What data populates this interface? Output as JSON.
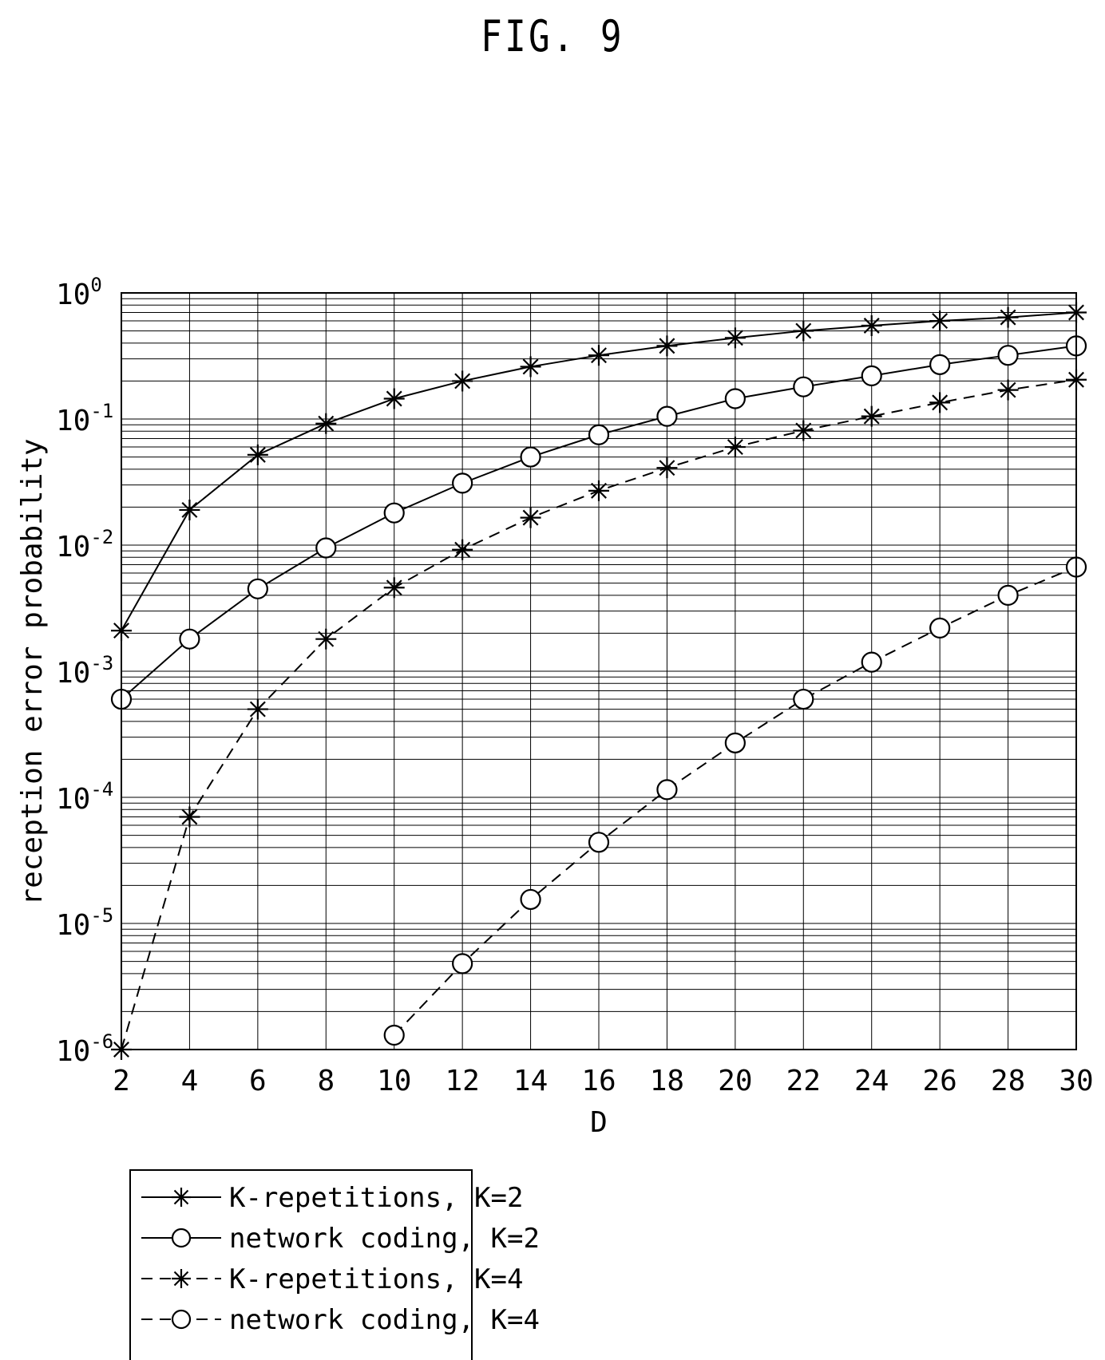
{
  "chart_data": {
    "type": "line",
    "title": "FIG. 9",
    "xlabel": "D",
    "ylabel": "reception error probability",
    "xlim": [
      2,
      30
    ],
    "ylim": [
      1e-06,
      1
    ],
    "y_scale": "log",
    "grid": true,
    "legend_position": "below-left",
    "x_ticks": [
      "2",
      "4",
      "6",
      "8",
      "10",
      "12",
      "14",
      "16",
      "18",
      "20",
      "22",
      "24",
      "26",
      "28",
      "30"
    ],
    "y_ticks": [
      {
        "base": "10",
        "exp": "0",
        "value": 1
      },
      {
        "base": "10",
        "exp": "-1",
        "value": 0.1
      },
      {
        "base": "10",
        "exp": "-2",
        "value": 0.01
      },
      {
        "base": "10",
        "exp": "-3",
        "value": 0.001
      },
      {
        "base": "10",
        "exp": "-4",
        "value": 0.0001
      },
      {
        "base": "10",
        "exp": "-5",
        "value": 1e-05
      },
      {
        "base": "10",
        "exp": "-6",
        "value": 1e-06
      }
    ],
    "series": [
      {
        "name": "K-repetitions, K=2",
        "marker": "asterisk",
        "line": "solid",
        "x": [
          2,
          4,
          6,
          8,
          10,
          12,
          14,
          16,
          18,
          20,
          22,
          24,
          26,
          28,
          30
        ],
        "values": [
          0.0021,
          0.019,
          0.052,
          0.092,
          0.145,
          0.2,
          0.26,
          0.32,
          0.38,
          0.44,
          0.5,
          0.55,
          0.6,
          0.64,
          0.7
        ]
      },
      {
        "name": "network coding, K=2",
        "marker": "circle",
        "line": "solid",
        "x": [
          2,
          4,
          6,
          8,
          10,
          12,
          14,
          16,
          18,
          20,
          22,
          24,
          26,
          28,
          30
        ],
        "values": [
          0.0006,
          0.0018,
          0.0045,
          0.0095,
          0.018,
          0.031,
          0.05,
          0.075,
          0.105,
          0.145,
          0.18,
          0.22,
          0.27,
          0.32,
          0.38
        ]
      },
      {
        "name": "K-repetitions, K=4",
        "marker": "asterisk",
        "line": "dashed",
        "x": [
          2,
          4,
          6,
          8,
          10,
          12,
          14,
          16,
          18,
          20,
          22,
          24,
          26,
          28,
          30
        ],
        "values": [
          1e-06,
          7e-05,
          0.0005,
          0.0018,
          0.0046,
          0.0092,
          0.0165,
          0.027,
          0.041,
          0.06,
          0.081,
          0.105,
          0.135,
          0.17,
          0.205
        ]
      },
      {
        "name": "network coding, K=4",
        "marker": "circle",
        "line": "dashed",
        "x": [
          10,
          12,
          14,
          16,
          18,
          20,
          22,
          24,
          26,
          28,
          30
        ],
        "values": [
          1.3e-06,
          4.8e-06,
          1.55e-05,
          4.4e-05,
          0.000115,
          0.00027,
          0.0006,
          0.00118,
          0.0022,
          0.004,
          0.0067
        ]
      }
    ]
  }
}
